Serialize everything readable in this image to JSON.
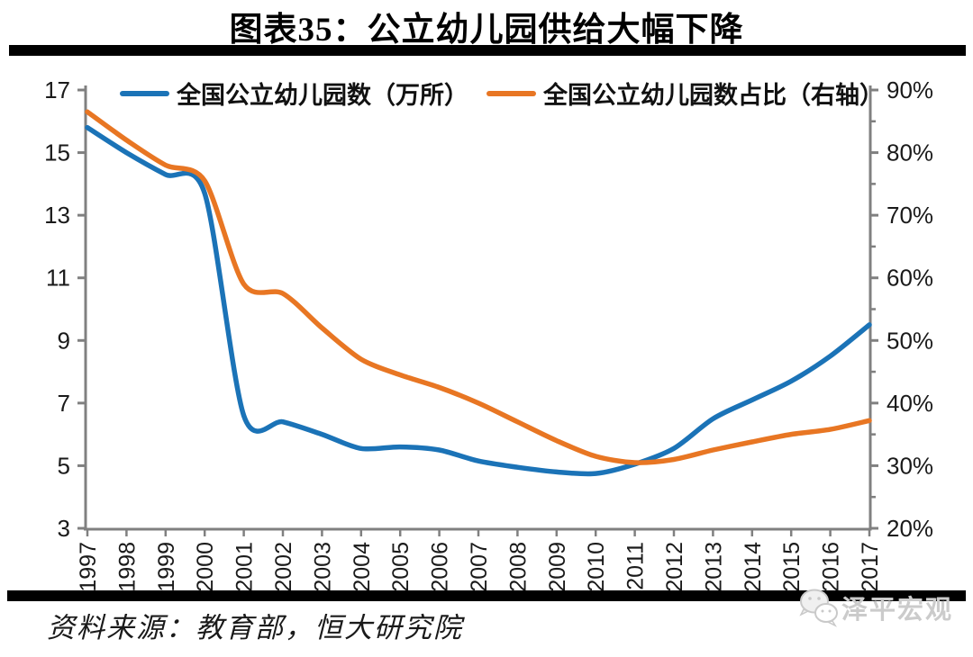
{
  "title": "图表35：公立幼儿园供给大幅下降",
  "legend": {
    "items": [
      {
        "label": "全国公立幼儿园数（万所）",
        "color": "#1B73B7"
      },
      {
        "label": "全国公立幼儿园数占比（右轴）",
        "color": "#E87623"
      }
    ]
  },
  "chart_data": {
    "type": "line",
    "smooth": true,
    "grid": false,
    "legend_position": "top",
    "x": [
      "1997",
      "1998",
      "1999",
      "2000",
      "2001",
      "2002",
      "2003",
      "2004",
      "2005",
      "2006",
      "2007",
      "2008",
      "2009",
      "2010",
      "2011",
      "2012",
      "2013",
      "2014",
      "2015",
      "2016",
      "2017"
    ],
    "series": [
      {
        "name": "全国公立幼儿园数（万所）",
        "axis": "left",
        "color": "#1B73B7",
        "values": [
          15.8,
          15.0,
          14.3,
          13.7,
          6.6,
          6.4,
          6.0,
          5.55,
          5.6,
          5.5,
          5.15,
          4.95,
          4.8,
          4.75,
          5.05,
          5.55,
          6.5,
          7.1,
          7.7,
          8.5,
          9.5
        ]
      },
      {
        "name": "全国公立幼儿园数占比（右轴）",
        "axis": "right",
        "color": "#E87623",
        "values": [
          86.5,
          82.0,
          78.0,
          75.5,
          59.0,
          57.5,
          52.0,
          47.0,
          44.5,
          42.5,
          40.0,
          37.0,
          34.0,
          31.5,
          30.5,
          31.0,
          32.5,
          33.8,
          35.0,
          35.8,
          37.2
        ]
      }
    ],
    "left_axis": {
      "min": 3,
      "max": 17,
      "step": 2,
      "tick_labels": [
        "17",
        "15",
        "13",
        "11",
        "9",
        "7",
        "5",
        "3"
      ]
    },
    "right_axis": {
      "min": 20,
      "max": 90,
      "step": 10,
      "minor_step": 5,
      "tick_labels": [
        "90%",
        "80%",
        "70%",
        "60%",
        "50%",
        "40%",
        "30%",
        "20%"
      ]
    },
    "axis_color": "#808080",
    "tick_label_color": "#1a1a1a"
  },
  "source": {
    "text": "资料来源：教育部，恒大研究院"
  },
  "watermark": {
    "text": "泽平宏观",
    "icon": "wechat-icon",
    "color": "#cbcbcb"
  }
}
